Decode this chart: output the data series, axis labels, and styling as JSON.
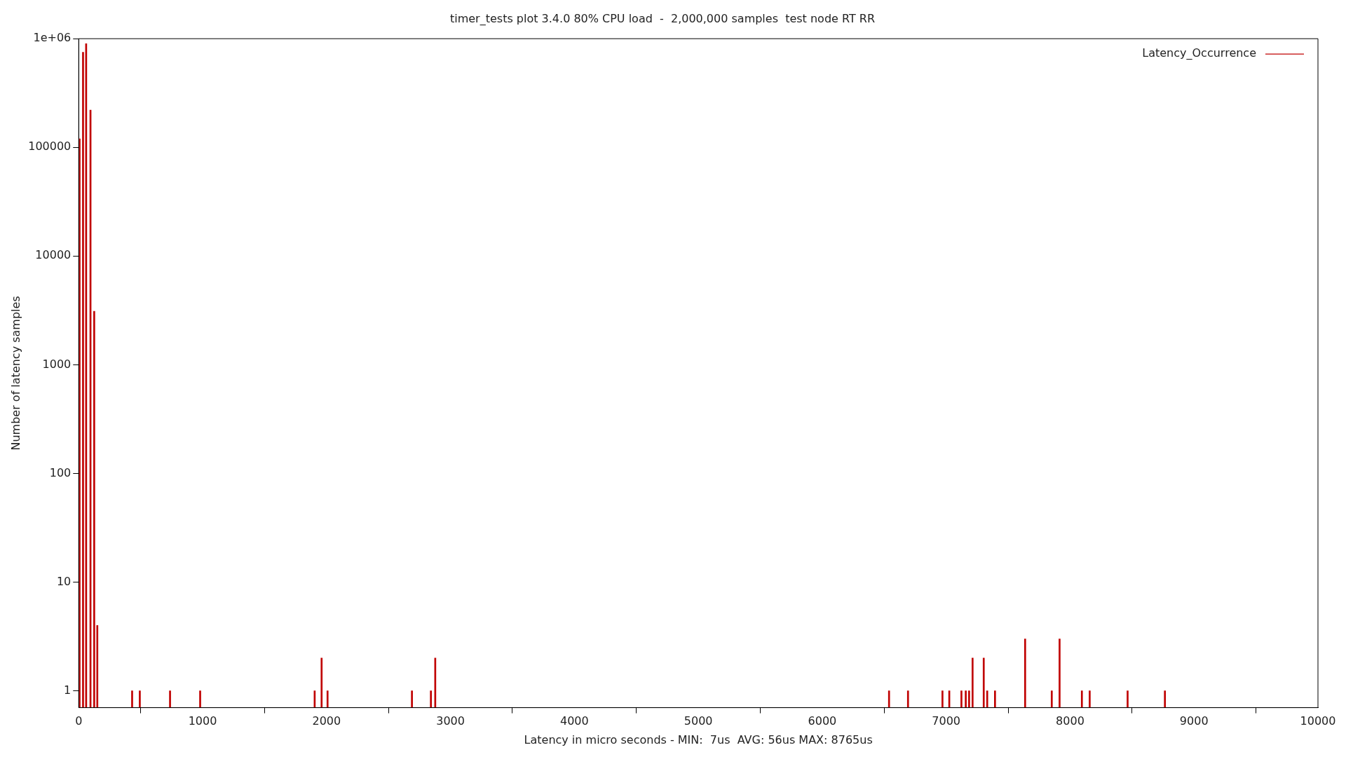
{
  "chart_data": {
    "type": "bar",
    "title": "timer_tests plot 3.4.0 80% CPU load  -  2,000,000 samples  test node RT RR",
    "xlabel": "Latency in micro seconds - MIN:  7us  AVG: 56us MAX: 8765us",
    "ylabel": "Number of latency samples",
    "x": [
      7,
      35,
      60,
      95,
      125,
      150,
      431,
      493,
      737,
      980,
      1904,
      1960,
      2008,
      2689,
      2842,
      2877,
      6539,
      6692,
      6970,
      7025,
      7123,
      7158,
      7185,
      7213,
      7303,
      7331,
      7394,
      7637,
      7852,
      7915,
      8095,
      8158,
      8464,
      8765
    ],
    "series": [
      {
        "name": "Latency_Occurrence",
        "color": "#c00000",
        "values": [
          120000,
          750000,
          900000,
          220000,
          3100,
          4,
          1,
          1,
          1,
          1,
          1,
          2,
          1,
          1,
          1,
          2,
          1,
          1,
          1,
          1,
          1,
          1,
          1,
          2,
          2,
          1,
          1,
          3,
          1,
          3,
          1,
          1,
          1,
          1
        ]
      }
    ],
    "xlim": [
      0,
      10000
    ],
    "xticks": [
      0,
      1000,
      2000,
      3000,
      4000,
      5000,
      6000,
      7000,
      8000,
      9000,
      10000
    ],
    "ylim": [
      0.7,
      1000000
    ],
    "yticks": [
      1,
      10,
      100,
      1000,
      10000,
      100000,
      {
        "value": 1000000,
        "label": "1e+06"
      }
    ],
    "log": "y",
    "grid": false,
    "legend": "top right"
  }
}
